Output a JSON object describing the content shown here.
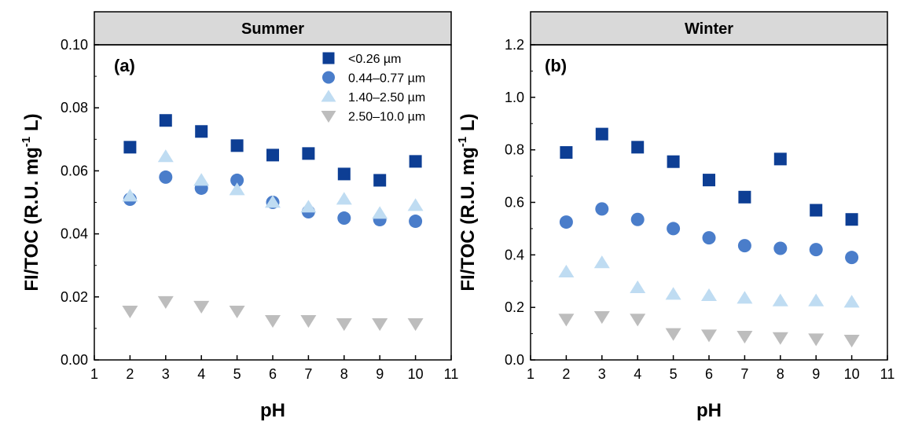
{
  "chart_data": [
    {
      "type": "scatter",
      "title": "Summer",
      "panel_label": "(a)",
      "xlabel": "pH",
      "ylabel": "FI/TOC (R.U. mg",
      "ylabel_sup": "-1",
      "ylabel_end": " L)",
      "xlim": [
        1,
        11
      ],
      "ylim": [
        0,
        0.1
      ],
      "xticks": [
        1,
        2,
        3,
        4,
        5,
        6,
        7,
        8,
        9,
        10,
        11
      ],
      "yticks": [
        "0.00",
        "0.02",
        "0.04",
        "0.06",
        "0.08",
        "0.10"
      ],
      "legend_position": "top-right",
      "x": [
        2,
        3,
        4,
        5,
        6,
        7,
        8,
        9,
        10
      ],
      "series": [
        {
          "name": "<0.26 µm",
          "marker": "square",
          "color": "#0D3E94",
          "values": [
            0.0675,
            0.076,
            0.0725,
            0.068,
            0.065,
            0.0655,
            0.059,
            0.057,
            0.063
          ]
        },
        {
          "name": "0.44–0.77 µm",
          "marker": "circle",
          "color": "#4A7DCA",
          "values": [
            0.051,
            0.058,
            0.0545,
            0.057,
            0.05,
            0.047,
            0.045,
            0.0445,
            0.044
          ]
        },
        {
          "name": "1.40–2.50 µm",
          "marker": "triangle-up",
          "color": "#BFDCF2",
          "values": [
            0.052,
            0.0645,
            0.057,
            0.054,
            0.05,
            0.0485,
            0.051,
            0.0465,
            0.049
          ]
        },
        {
          "name": "2.50–10.0 µm",
          "marker": "triangle-down",
          "color": "#BDBDBD",
          "values": [
            0.0155,
            0.0185,
            0.017,
            0.0155,
            0.0125,
            0.0125,
            0.0115,
            0.0115,
            0.0115
          ]
        }
      ]
    },
    {
      "type": "scatter",
      "title": "Winter",
      "panel_label": "(b)",
      "xlabel": "pH",
      "ylabel": "FI/TOC (R.U. mg",
      "ylabel_sup": "-1",
      "ylabel_end": " L)",
      "xlim": [
        1,
        11
      ],
      "ylim": [
        0,
        1.2
      ],
      "xticks": [
        1,
        2,
        3,
        4,
        5,
        6,
        7,
        8,
        9,
        10,
        11
      ],
      "yticks": [
        "0.0",
        "0.2",
        "0.4",
        "0.6",
        "0.8",
        "1.0",
        "1.2"
      ],
      "x": [
        2,
        3,
        4,
        5,
        6,
        7,
        8,
        9,
        10
      ],
      "series": [
        {
          "marker": "square",
          "color": "#0D3E94",
          "values": [
            0.79,
            0.86,
            0.81,
            0.755,
            0.685,
            0.62,
            0.765,
            0.57,
            0.535
          ]
        },
        {
          "marker": "circle",
          "color": "#4A7DCA",
          "values": [
            0.525,
            0.575,
            0.535,
            0.5,
            0.465,
            0.435,
            0.425,
            0.42,
            0.39
          ]
        },
        {
          "marker": "triangle-up",
          "color": "#BFDCF2",
          "values": [
            0.335,
            0.37,
            0.275,
            0.25,
            0.245,
            0.235,
            0.225,
            0.225,
            0.22
          ]
        },
        {
          "marker": "triangle-down",
          "color": "#BDBDBD",
          "values": [
            0.155,
            0.165,
            0.155,
            0.1,
            0.095,
            0.09,
            0.085,
            0.08,
            0.075
          ]
        }
      ]
    }
  ]
}
